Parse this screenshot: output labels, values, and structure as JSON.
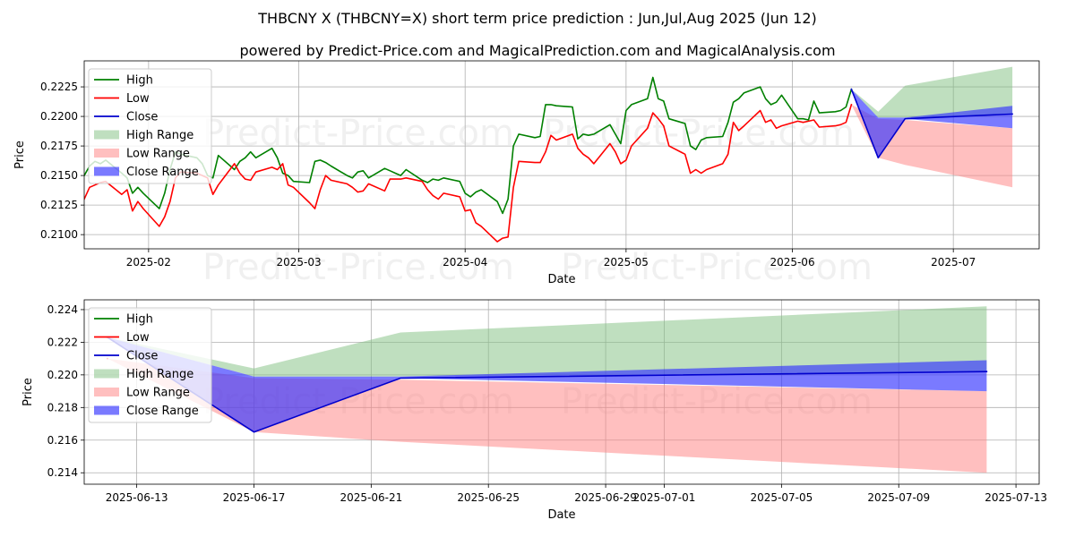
{
  "figure": {
    "title": "THBCNY X (THBCNY=X) short term price prediction : Jun,Jul,Aug 2025 (Jun 12)",
    "subtitle": "powered by Predict-Price.com and MagicalPrediction.com and MagicalAnalysis.com",
    "watermark": "Predict-Price.com"
  },
  "colors": {
    "high": "#008000",
    "low": "#ff0000",
    "close": "#0000cd",
    "high_range": "#7fbf7f",
    "low_range": "#ff7f7f",
    "close_range": "#3232ff",
    "grid": "#b0b0b0"
  },
  "chart_data": [
    {
      "type": "line",
      "title": "",
      "xlabel": "Date",
      "ylabel": "Price",
      "x_domain": [
        "2025-01-20",
        "2025-07-17"
      ],
      "ylim": [
        0.2088,
        0.2247
      ],
      "x_ticks": [
        {
          "date": "2025-02-01",
          "label": "2025-02"
        },
        {
          "date": "2025-03-01",
          "label": "2025-03"
        },
        {
          "date": "2025-04-01",
          "label": "2025-04"
        },
        {
          "date": "2025-05-01",
          "label": "2025-05"
        },
        {
          "date": "2025-06-01",
          "label": "2025-06"
        },
        {
          "date": "2025-07-01",
          "label": "2025-07"
        }
      ],
      "y_ticks": [
        0.21,
        0.2125,
        0.215,
        0.2175,
        0.22,
        0.2225
      ],
      "y_tick_labels": [
        "0.2100",
        "0.2125",
        "0.2150",
        "0.2175",
        "0.2200",
        "0.2225"
      ],
      "legend": {
        "position": "top-left",
        "entries": [
          {
            "label": "High",
            "kind": "line",
            "key": "high"
          },
          {
            "label": "Low",
            "kind": "line",
            "key": "low"
          },
          {
            "label": "Close",
            "kind": "line",
            "key": "close"
          },
          {
            "label": "High Range",
            "kind": "patch",
            "key": "high_range"
          },
          {
            "label": "Low Range",
            "kind": "patch",
            "key": "low_range"
          },
          {
            "label": "Close Range",
            "kind": "patch",
            "key": "close_range"
          }
        ]
      },
      "series": [
        {
          "name": "High",
          "key": "high",
          "x": [
            "2025-01-20",
            "2025-01-21",
            "2025-01-22",
            "2025-01-23",
            "2025-01-24",
            "2025-01-27",
            "2025-01-28",
            "2025-01-29",
            "2025-01-30",
            "2025-01-31",
            "2025-02-03",
            "2025-02-04",
            "2025-02-05",
            "2025-02-06",
            "2025-02-07",
            "2025-02-10",
            "2025-02-11",
            "2025-02-12",
            "2025-02-13",
            "2025-02-14",
            "2025-02-17",
            "2025-02-18",
            "2025-02-19",
            "2025-02-20",
            "2025-02-21",
            "2025-02-24",
            "2025-02-25",
            "2025-02-26",
            "2025-02-27",
            "2025-02-28",
            "2025-03-03",
            "2025-03-04",
            "2025-03-05",
            "2025-03-06",
            "2025-03-07",
            "2025-03-10",
            "2025-03-11",
            "2025-03-12",
            "2025-03-13",
            "2025-03-14",
            "2025-03-17",
            "2025-03-18",
            "2025-03-19",
            "2025-03-20",
            "2025-03-21",
            "2025-03-24",
            "2025-03-25",
            "2025-03-26",
            "2025-03-27",
            "2025-03-28",
            "2025-03-31",
            "2025-04-01",
            "2025-04-02",
            "2025-04-03",
            "2025-04-04",
            "2025-04-07",
            "2025-04-08",
            "2025-04-09",
            "2025-04-10",
            "2025-04-11",
            "2025-04-14",
            "2025-04-15",
            "2025-04-16",
            "2025-04-17",
            "2025-04-18",
            "2025-04-21",
            "2025-04-22",
            "2025-04-23",
            "2025-04-24",
            "2025-04-25",
            "2025-04-28",
            "2025-04-29",
            "2025-04-30",
            "2025-05-01",
            "2025-05-02",
            "2025-05-05",
            "2025-05-06",
            "2025-05-07",
            "2025-05-08",
            "2025-05-09",
            "2025-05-12",
            "2025-05-13",
            "2025-05-14",
            "2025-05-15",
            "2025-05-16",
            "2025-05-19",
            "2025-05-20",
            "2025-05-21",
            "2025-05-22",
            "2025-05-23",
            "2025-05-26",
            "2025-05-27",
            "2025-05-28",
            "2025-05-29",
            "2025-05-30",
            "2025-06-02",
            "2025-06-03",
            "2025-06-04",
            "2025-06-05",
            "2025-06-06",
            "2025-06-09",
            "2025-06-10",
            "2025-06-11",
            "2025-06-12"
          ],
          "values": [
            0.215,
            0.2158,
            0.2162,
            0.216,
            0.2163,
            0.2152,
            0.2148,
            0.2135,
            0.214,
            0.2135,
            0.2122,
            0.2135,
            0.2155,
            0.217,
            0.2168,
            0.2165,
            0.216,
            0.215,
            0.2148,
            0.2167,
            0.2155,
            0.2162,
            0.2165,
            0.217,
            0.2165,
            0.2173,
            0.2165,
            0.2152,
            0.215,
            0.2145,
            0.2144,
            0.2162,
            0.2163,
            0.2161,
            0.2158,
            0.215,
            0.2148,
            0.2153,
            0.2154,
            0.2148,
            0.2156,
            0.2154,
            0.2152,
            0.215,
            0.2155,
            0.2146,
            0.2144,
            0.2147,
            0.2146,
            0.2148,
            0.2145,
            0.2135,
            0.2132,
            0.2136,
            0.2138,
            0.2128,
            0.2118,
            0.213,
            0.2175,
            0.2185,
            0.2182,
            0.2183,
            0.221,
            0.221,
            0.2209,
            0.2208,
            0.2181,
            0.2185,
            0.2184,
            0.2185,
            0.2193,
            0.2185,
            0.2177,
            0.2205,
            0.221,
            0.2215,
            0.2233,
            0.2215,
            0.2213,
            0.2198,
            0.2194,
            0.2175,
            0.2172,
            0.218,
            0.2182,
            0.2183,
            0.2195,
            0.2212,
            0.2215,
            0.222,
            0.2225,
            0.2215,
            0.221,
            0.2212,
            0.2218,
            0.2198,
            0.2198,
            0.2197,
            0.2213,
            0.2203,
            0.2204,
            0.2205,
            0.2208,
            0.2223
          ]
        },
        {
          "name": "Low",
          "key": "low",
          "x": [
            "2025-01-20",
            "2025-01-21",
            "2025-01-22",
            "2025-01-23",
            "2025-01-24",
            "2025-01-27",
            "2025-01-28",
            "2025-01-29",
            "2025-01-30",
            "2025-01-31",
            "2025-02-03",
            "2025-02-04",
            "2025-02-05",
            "2025-02-06",
            "2025-02-07",
            "2025-02-10",
            "2025-02-11",
            "2025-02-12",
            "2025-02-13",
            "2025-02-14",
            "2025-02-17",
            "2025-02-18",
            "2025-02-19",
            "2025-02-20",
            "2025-02-21",
            "2025-02-24",
            "2025-02-25",
            "2025-02-26",
            "2025-02-27",
            "2025-02-28",
            "2025-03-03",
            "2025-03-04",
            "2025-03-05",
            "2025-03-06",
            "2025-03-07",
            "2025-03-10",
            "2025-03-11",
            "2025-03-12",
            "2025-03-13",
            "2025-03-14",
            "2025-03-17",
            "2025-03-18",
            "2025-03-19",
            "2025-03-20",
            "2025-03-21",
            "2025-03-24",
            "2025-03-25",
            "2025-03-26",
            "2025-03-27",
            "2025-03-28",
            "2025-03-31",
            "2025-04-01",
            "2025-04-02",
            "2025-04-03",
            "2025-04-04",
            "2025-04-07",
            "2025-04-08",
            "2025-04-09",
            "2025-04-10",
            "2025-04-11",
            "2025-04-14",
            "2025-04-15",
            "2025-04-16",
            "2025-04-17",
            "2025-04-18",
            "2025-04-21",
            "2025-04-22",
            "2025-04-23",
            "2025-04-24",
            "2025-04-25",
            "2025-04-28",
            "2025-04-29",
            "2025-04-30",
            "2025-05-01",
            "2025-05-02",
            "2025-05-05",
            "2025-05-06",
            "2025-05-07",
            "2025-05-08",
            "2025-05-09",
            "2025-05-12",
            "2025-05-13",
            "2025-05-14",
            "2025-05-15",
            "2025-05-16",
            "2025-05-19",
            "2025-05-20",
            "2025-05-21",
            "2025-05-22",
            "2025-05-23",
            "2025-05-26",
            "2025-05-27",
            "2025-05-28",
            "2025-05-29",
            "2025-05-30",
            "2025-06-02",
            "2025-06-03",
            "2025-06-04",
            "2025-06-05",
            "2025-06-06",
            "2025-06-09",
            "2025-06-10",
            "2025-06-11",
            "2025-06-12"
          ],
          "values": [
            0.213,
            0.214,
            0.2142,
            0.2144,
            0.2145,
            0.2134,
            0.2138,
            0.212,
            0.2128,
            0.2122,
            0.2107,
            0.2115,
            0.2128,
            0.2148,
            0.2153,
            0.2152,
            0.215,
            0.2148,
            0.2134,
            0.2142,
            0.216,
            0.2152,
            0.2147,
            0.2146,
            0.2153,
            0.2157,
            0.2155,
            0.216,
            0.2142,
            0.214,
            0.2127,
            0.2122,
            0.2138,
            0.215,
            0.2146,
            0.2143,
            0.214,
            0.2136,
            0.2137,
            0.2143,
            0.2137,
            0.2147,
            0.2147,
            0.2147,
            0.2148,
            0.2145,
            0.2138,
            0.2133,
            0.213,
            0.2135,
            0.2132,
            0.212,
            0.2121,
            0.211,
            0.2107,
            0.2094,
            0.2097,
            0.2098,
            0.214,
            0.2162,
            0.2161,
            0.2161,
            0.217,
            0.2184,
            0.218,
            0.2185,
            0.2173,
            0.2168,
            0.2165,
            0.216,
            0.2177,
            0.217,
            0.216,
            0.2163,
            0.2175,
            0.219,
            0.2203,
            0.2198,
            0.2192,
            0.2175,
            0.2168,
            0.2152,
            0.2155,
            0.2152,
            0.2155,
            0.216,
            0.2168,
            0.2195,
            0.2188,
            0.2192,
            0.2205,
            0.2195,
            0.2197,
            0.219,
            0.2192,
            0.2196,
            0.2195,
            0.2196,
            0.2197,
            0.2191,
            0.2192,
            0.2193,
            0.2195,
            0.221
          ]
        },
        {
          "name": "Close",
          "key": "close",
          "x": [
            "2025-06-12",
            "2025-06-17",
            "2025-06-22",
            "2025-07-12"
          ],
          "values": [
            0.2223,
            0.2165,
            0.2198,
            0.2202
          ]
        }
      ],
      "ranges": [
        {
          "name": "High Range",
          "key": "high_range",
          "x": [
            "2025-06-12",
            "2025-06-17",
            "2025-06-22",
            "2025-07-12"
          ],
          "upper": [
            0.2223,
            0.2204,
            0.2226,
            0.2242
          ],
          "lower": [
            0.2223,
            0.2199,
            0.2199,
            0.2202
          ]
        },
        {
          "name": "Low Range",
          "key": "low_range",
          "x": [
            "2025-06-12",
            "2025-06-17",
            "2025-06-22",
            "2025-07-12"
          ],
          "upper": [
            0.221,
            0.2198,
            0.2197,
            0.219
          ],
          "lower": [
            0.221,
            0.2165,
            0.2159,
            0.214
          ]
        },
        {
          "name": "Close Range",
          "key": "close_range",
          "x": [
            "2025-06-12",
            "2025-06-17",
            "2025-06-22",
            "2025-07-12"
          ],
          "upper": [
            0.2223,
            0.2199,
            0.2199,
            0.2209
          ],
          "lower": [
            0.2223,
            0.2165,
            0.2198,
            0.219
          ]
        }
      ]
    },
    {
      "type": "line",
      "title": "",
      "xlabel": "Date",
      "ylabel": "Price",
      "x_domain": [
        "2025-06-11 05:00",
        "2025-07-13 19:00"
      ],
      "ylim": [
        0.2133,
        0.2246
      ],
      "x_ticks": [
        {
          "date": "2025-06-13",
          "label": "2025-06-13"
        },
        {
          "date": "2025-06-17",
          "label": "2025-06-17"
        },
        {
          "date": "2025-06-21",
          "label": "2025-06-21"
        },
        {
          "date": "2025-06-25",
          "label": "2025-06-25"
        },
        {
          "date": "2025-06-29",
          "label": "2025-06-29"
        },
        {
          "date": "2025-07-01",
          "label": "2025-07-01"
        },
        {
          "date": "2025-07-05",
          "label": "2025-07-05"
        },
        {
          "date": "2025-07-09",
          "label": "2025-07-09"
        },
        {
          "date": "2025-07-13",
          "label": "2025-07-13"
        }
      ],
      "y_ticks": [
        0.214,
        0.216,
        0.218,
        0.22,
        0.222,
        0.224
      ],
      "y_tick_labels": [
        "0.214",
        "0.216",
        "0.218",
        "0.220",
        "0.222",
        "0.224"
      ],
      "legend": {
        "position": "top-left",
        "entries": [
          {
            "label": "High",
            "kind": "line",
            "key": "high"
          },
          {
            "label": "Low",
            "kind": "line",
            "key": "low"
          },
          {
            "label": "Close",
            "kind": "line",
            "key": "close"
          },
          {
            "label": "High Range",
            "kind": "patch",
            "key": "high_range"
          },
          {
            "label": "Low Range",
            "kind": "patch",
            "key": "low_range"
          },
          {
            "label": "Close Range",
            "kind": "patch",
            "key": "close_range"
          }
        ]
      },
      "series": [
        {
          "name": "High",
          "key": "high",
          "x": [
            "2025-06-12"
          ],
          "values": [
            0.2223
          ]
        },
        {
          "name": "Low",
          "key": "low",
          "x": [
            "2025-06-12"
          ],
          "values": [
            0.221
          ]
        },
        {
          "name": "Close",
          "key": "close",
          "x": [
            "2025-06-12",
            "2025-06-17",
            "2025-06-22",
            "2025-07-12"
          ],
          "values": [
            0.2223,
            0.2165,
            0.2198,
            0.2202
          ]
        }
      ],
      "ranges": [
        {
          "name": "High Range",
          "key": "high_range",
          "x": [
            "2025-06-12",
            "2025-06-17",
            "2025-06-22",
            "2025-07-12"
          ],
          "upper": [
            0.2223,
            0.2204,
            0.2226,
            0.2242
          ],
          "lower": [
            0.2223,
            0.2199,
            0.2199,
            0.2202
          ]
        },
        {
          "name": "Low Range",
          "key": "low_range",
          "x": [
            "2025-06-12",
            "2025-06-17",
            "2025-06-22",
            "2025-07-12"
          ],
          "upper": [
            0.221,
            0.2198,
            0.2197,
            0.219
          ],
          "lower": [
            0.221,
            0.2165,
            0.2159,
            0.214
          ]
        },
        {
          "name": "Close Range",
          "key": "close_range",
          "x": [
            "2025-06-12",
            "2025-06-17",
            "2025-06-22",
            "2025-07-12"
          ],
          "upper": [
            0.2223,
            0.2199,
            0.2199,
            0.2209
          ],
          "lower": [
            0.2223,
            0.2165,
            0.2198,
            0.219
          ]
        }
      ]
    }
  ]
}
